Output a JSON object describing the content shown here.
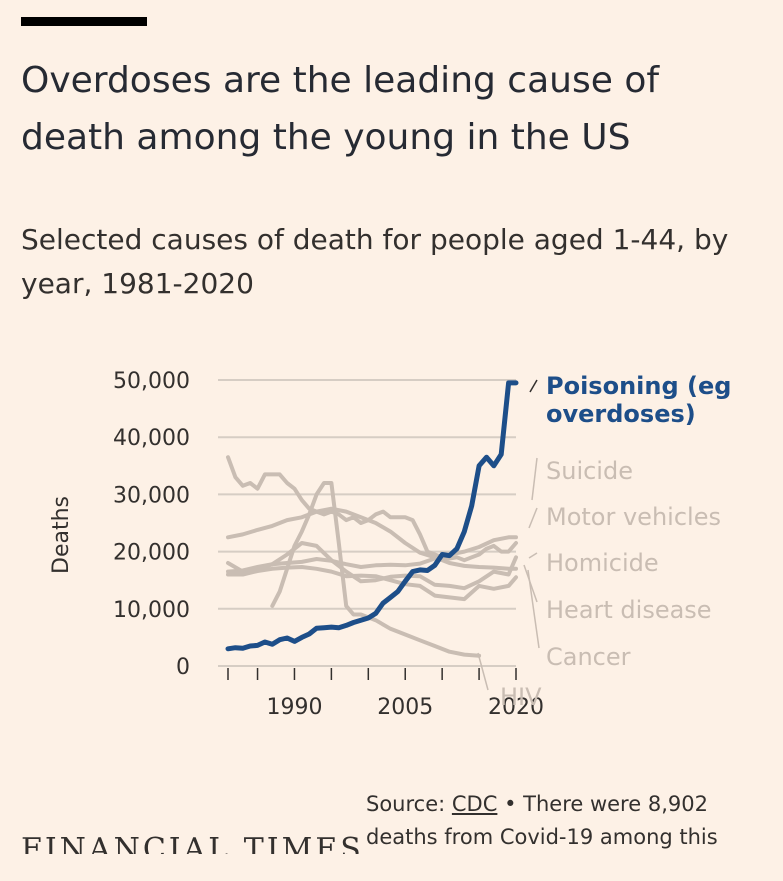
{
  "header": {
    "title": "Overdoses are the leading cause of death among the young in the US",
    "subtitle": "Selected causes of death for people aged 1-44, by year, 1981-2020"
  },
  "footer": {
    "source_prefix": "Source:",
    "source_link": "CDC",
    "source_note": "• There were 8,902 deaths from Covid-19 among this",
    "brand": "FINANCIAL TIMES"
  },
  "colors": {
    "background": "#fdf1e6",
    "highlight": "#1d4e89",
    "muted": "#c9bdb3",
    "grid": "#d6cdc4",
    "text": "#33302e"
  },
  "chart_data": {
    "type": "line",
    "ylabel": "Deaths",
    "xlabel": "",
    "ylim": [
      0,
      50000
    ],
    "xlim": [
      1981,
      2020
    ],
    "yticks": [
      0,
      10000,
      20000,
      30000,
      40000,
      50000
    ],
    "ytick_labels": [
      "0",
      "10,000",
      "20,000",
      "30,000",
      "40,000",
      "50,000"
    ],
    "xticks": [
      1990,
      2005,
      2020
    ],
    "xtick_labels": [
      "1990",
      "2005",
      "2020"
    ],
    "series": [
      {
        "name": "Poisoning (eg overdoses)",
        "label_lines": [
          "Poisoning (eg",
          "overdoses)"
        ],
        "highlight": true,
        "x": [
          1981,
          1982,
          1983,
          1984,
          1985,
          1986,
          1987,
          1988,
          1989,
          1990,
          1991,
          1992,
          1993,
          1994,
          1995,
          1996,
          1997,
          1998,
          1999,
          2000,
          2001,
          2002,
          2003,
          2004,
          2005,
          2006,
          2007,
          2008,
          2009,
          2010,
          2011,
          2012,
          2013,
          2014,
          2015,
          2016,
          2017,
          2018,
          2019,
          2020
        ],
        "values": [
          3000,
          3200,
          3100,
          3500,
          3600,
          4200,
          3800,
          4600,
          4900,
          4300,
          5000,
          5600,
          6600,
          6700,
          6800,
          6700,
          7100,
          7600,
          8000,
          8400,
          9200,
          11000,
          12000,
          13000,
          14800,
          16500,
          16800,
          16700,
          17600,
          19500,
          19300,
          20500,
          23500,
          28000,
          35000,
          36500,
          35000,
          37000,
          49500,
          49500
        ]
      },
      {
        "name": "Suicide",
        "label_lines": [
          "Suicide"
        ],
        "highlight": false,
        "x": [
          1981,
          1983,
          1985,
          1987,
          1989,
          1991,
          1993,
          1995,
          1997,
          1999,
          2001,
          2003,
          2005,
          2007,
          2009,
          2011,
          2013,
          2015,
          2017,
          2019,
          2020
        ],
        "values": [
          16500,
          16700,
          17300,
          17800,
          18000,
          18200,
          18700,
          18400,
          17800,
          17300,
          17600,
          17700,
          17600,
          17900,
          18800,
          19500,
          20000,
          20800,
          22000,
          22500,
          22500
        ]
      },
      {
        "name": "Motor vehicles",
        "label_lines": [
          "Motor vehicles"
        ],
        "highlight": false,
        "x": [
          1981,
          1982,
          1983,
          1984,
          1985,
          1986,
          1987,
          1988,
          1989,
          1990,
          1991,
          1992,
          1993,
          1994,
          1995,
          1996,
          1997,
          1998,
          1999,
          2000,
          2001,
          2002,
          2003,
          2004,
          2005,
          2006,
          2007,
          2008,
          2009,
          2010,
          2011,
          2012,
          2013,
          2014,
          2015,
          2016,
          2017,
          2018,
          2019,
          2020
        ],
        "values": [
          36500,
          33000,
          31500,
          32000,
          31000,
          33500,
          33500,
          33500,
          32000,
          31000,
          29000,
          27500,
          27000,
          26500,
          27000,
          26500,
          25500,
          26000,
          25000,
          25500,
          26500,
          27000,
          26000,
          26000,
          26000,
          25500,
          23000,
          20000,
          19500,
          19000,
          18800,
          19000,
          18500,
          19000,
          19500,
          20500,
          21000,
          20000,
          20000,
          21500
        ]
      },
      {
        "name": "Homicide",
        "label_lines": [
          "Homicide"
        ],
        "highlight": false,
        "x": [
          1981,
          1983,
          1985,
          1987,
          1989,
          1991,
          1993,
          1995,
          1997,
          1999,
          2001,
          2003,
          2005,
          2007,
          2009,
          2011,
          2013,
          2015,
          2017,
          2019,
          2020
        ],
        "values": [
          18000,
          16500,
          16800,
          17800,
          19500,
          21500,
          21000,
          18500,
          16500,
          14800,
          15000,
          15600,
          15800,
          15700,
          14200,
          14000,
          13600,
          14800,
          16500,
          16000,
          19000
        ]
      },
      {
        "name": "Heart disease",
        "label_lines": [
          "Heart disease"
        ],
        "highlight": false,
        "x": [
          1981,
          1983,
          1985,
          1987,
          1989,
          1991,
          1993,
          1995,
          1997,
          1999,
          2001,
          2003,
          2005,
          2007,
          2009,
          2011,
          2013,
          2015,
          2017,
          2019,
          2020
        ],
        "values": [
          22500,
          23000,
          23800,
          24500,
          25500,
          26000,
          27000,
          27500,
          27000,
          26000,
          25000,
          23500,
          21500,
          19800,
          19000,
          18000,
          17500,
          17300,
          17200,
          17000,
          17000
        ]
      },
      {
        "name": "Cancer",
        "label_lines": [
          "Cancer"
        ],
        "highlight": false,
        "x": [
          1981,
          1983,
          1985,
          1987,
          1989,
          1991,
          1993,
          1995,
          1997,
          1999,
          2001,
          2003,
          2005,
          2007,
          2009,
          2011,
          2013,
          2015,
          2017,
          2019,
          2020
        ],
        "values": [
          16000,
          16000,
          16600,
          17000,
          17200,
          17300,
          17000,
          16500,
          15700,
          15800,
          15700,
          15000,
          14300,
          14000,
          12300,
          12000,
          11700,
          14000,
          13500,
          14000,
          15500
        ]
      },
      {
        "name": "HIV",
        "label_lines": [
          "HIV"
        ],
        "highlight": false,
        "x": [
          1987,
          1988,
          1989,
          1990,
          1991,
          1992,
          1993,
          1994,
          1995,
          1996,
          1997,
          1998,
          1999,
          2001,
          2003,
          2005,
          2007,
          2009,
          2011,
          2013,
          2015
        ],
        "values": [
          10500,
          13000,
          17000,
          21000,
          23500,
          26500,
          30000,
          32000,
          32000,
          21500,
          10500,
          9000,
          9000,
          8000,
          6500,
          5500,
          4500,
          3500,
          2500,
          2000,
          1800
        ]
      }
    ]
  }
}
